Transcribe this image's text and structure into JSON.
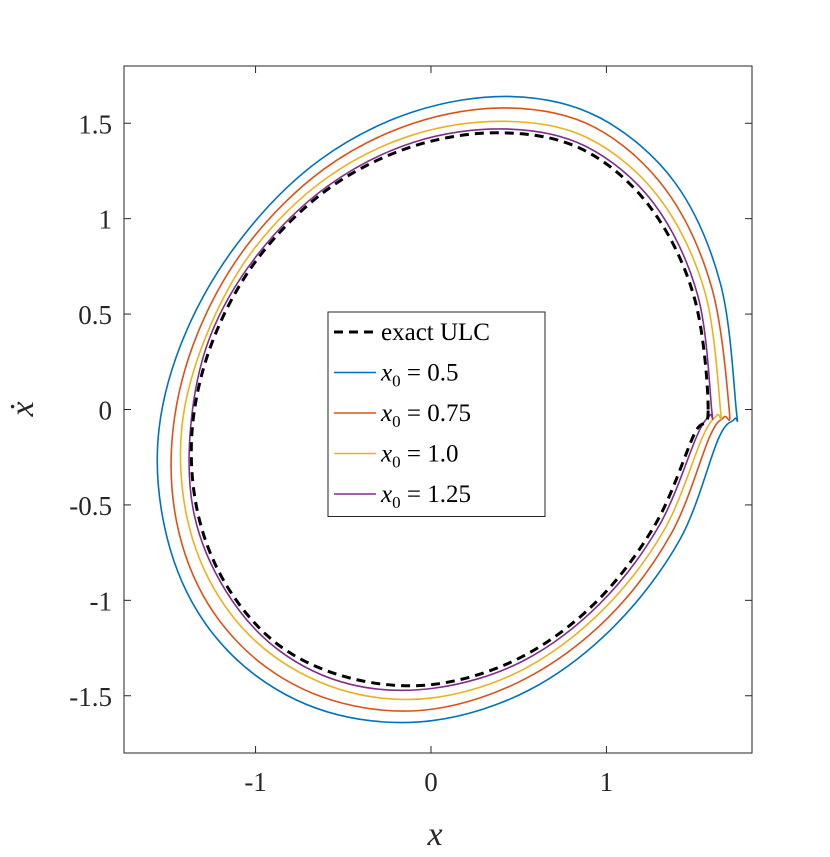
{
  "chart_data": {
    "type": "line",
    "xlabel": "x",
    "ylabel": "ẋ",
    "xlim": [
      -1.75,
      1.83
    ],
    "ylim": [
      -1.8,
      1.8
    ],
    "xticks": [
      -1,
      0,
      1
    ],
    "xtick_labels": [
      "-1",
      "0",
      "1"
    ],
    "yticks": [
      -1.5,
      -1,
      -0.5,
      0,
      0.5,
      1,
      1.5
    ],
    "ytick_labels": [
      "-1.5",
      "-1",
      "-0.5",
      "0",
      "0.5",
      "1",
      "1.5"
    ],
    "grid": false,
    "legend_position": "center",
    "series": [
      {
        "name": "exact ULC",
        "style": "dashed",
        "color": "#000000",
        "x": [
          1.58,
          1.5,
          1.25,
          0.87,
          0.41,
          -0.1,
          -0.58,
          -0.98,
          -1.24,
          -1.36,
          -1.33,
          -1.16,
          -0.86,
          -0.45,
          0.02,
          0.51,
          0.94,
          1.28,
          1.5,
          1.58
        ],
        "y": [
          0.0,
          0.59,
          1.06,
          1.36,
          1.45,
          1.38,
          1.16,
          0.8,
          0.37,
          -0.09,
          -0.54,
          -0.93,
          -1.24,
          -1.41,
          -1.44,
          -1.3,
          -1.01,
          -0.6,
          -0.13,
          0.0
        ]
      },
      {
        "name": "x₀ = 0.5",
        "color": "#0072BD",
        "x": [
          1.74,
          1.65,
          1.39,
          0.96,
          0.46,
          -0.1,
          -0.63,
          -1.07,
          -1.39,
          -1.55,
          -1.52,
          -1.33,
          -0.99,
          -0.53,
          0.01,
          0.56,
          1.04,
          1.42,
          1.64,
          1.73,
          1.74
        ],
        "y": [
          0.0,
          0.66,
          1.19,
          1.53,
          1.64,
          1.56,
          1.31,
          0.91,
          0.42,
          -0.1,
          -0.61,
          -1.06,
          -1.4,
          -1.6,
          -1.63,
          -1.47,
          -1.14,
          -0.68,
          -0.15,
          -0.05,
          0.0
        ]
      },
      {
        "name": "x₀ = 0.75",
        "color": "#D95319",
        "x": [
          1.7,
          1.6,
          1.34,
          0.93,
          0.44,
          -0.1,
          -0.61,
          -1.04,
          -1.33,
          -1.47,
          -1.45,
          -1.27,
          -0.94,
          -0.5,
          0.01,
          0.54,
          1.01,
          1.37,
          1.59,
          1.67,
          1.7
        ],
        "y": [
          0.0,
          0.64,
          1.15,
          1.48,
          1.58,
          1.5,
          1.26,
          0.87,
          0.4,
          -0.1,
          -0.59,
          -1.02,
          -1.35,
          -1.54,
          -1.57,
          -1.41,
          -1.09,
          -0.65,
          -0.14,
          -0.04,
          0.0
        ]
      },
      {
        "name": "x₀ = 1.0",
        "color": "#EDB120",
        "x": [
          1.65,
          1.56,
          1.3,
          0.9,
          0.43,
          -0.1,
          -0.6,
          -1.01,
          -1.28,
          -1.42,
          -1.39,
          -1.21,
          -0.9,
          -0.47,
          0.02,
          0.53,
          0.98,
          1.33,
          1.55,
          1.63,
          1.65
        ],
        "y": [
          0.0,
          0.62,
          1.11,
          1.42,
          1.51,
          1.44,
          1.21,
          0.84,
          0.39,
          -0.09,
          -0.57,
          -0.98,
          -1.29,
          -1.48,
          -1.51,
          -1.36,
          -1.05,
          -0.63,
          -0.14,
          -0.03,
          0.0
        ]
      },
      {
        "name": "x₀ = 1.25",
        "color": "#7E2F8E",
        "x": [
          1.6,
          1.52,
          1.27,
          0.88,
          0.42,
          -0.1,
          -0.59,
          -0.99,
          -1.26,
          -1.37,
          -1.35,
          -1.17,
          -0.87,
          -0.46,
          0.02,
          0.52,
          0.96,
          1.3,
          1.52,
          1.59,
          1.6
        ],
        "y": [
          0.0,
          0.6,
          1.08,
          1.38,
          1.47,
          1.4,
          1.17,
          0.81,
          0.38,
          -0.09,
          -0.55,
          -0.95,
          -1.26,
          -1.44,
          -1.46,
          -1.32,
          -1.02,
          -0.61,
          -0.13,
          -0.03,
          0.0
        ]
      }
    ],
    "legend": [
      {
        "prefix": "",
        "var": "",
        "text": "exact ULC"
      },
      {
        "prefix": "",
        "var": "x",
        "sub": "0",
        "text": " = 0.5"
      },
      {
        "prefix": "",
        "var": "x",
        "sub": "0",
        "text": " = 0.75"
      },
      {
        "prefix": "",
        "var": "x",
        "sub": "0",
        "text": " = 1.0"
      },
      {
        "prefix": "",
        "var": "x",
        "sub": "0",
        "text": " = 1.25"
      }
    ]
  }
}
